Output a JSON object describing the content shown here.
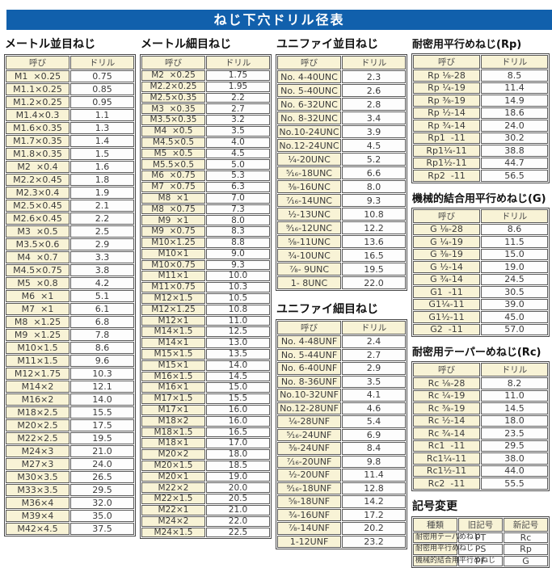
{
  "header": {
    "title": "ねじ下穴ドリル径表"
  },
  "colors": {
    "title_bar_blue": "#1160ac",
    "cell_cream": "#f8f3d6",
    "cell_white": "#fdfdfd",
    "border_gray": "#5a5a5a",
    "title_text": "#ffffff"
  },
  "tables": [
    {
      "id": "metric-coarse",
      "title": "メートル並目ねじ",
      "headers": [
        "呼び",
        "ドリル"
      ],
      "rows": [
        [
          "M1  ×0.25",
          "0.75"
        ],
        [
          "M1.1×0.25",
          "0.85"
        ],
        [
          "M1.2×0.25",
          "0.95"
        ],
        [
          "M1.4×0.3",
          "1.1"
        ],
        [
          "M1.6×0.35",
          "1.3"
        ],
        [
          "M1.7×0.35",
          "1.4"
        ],
        [
          "M1.8×0.35",
          "1.5"
        ],
        [
          "M2  ×0.4",
          "1.6"
        ],
        [
          "M2.2×0.45",
          "1.8"
        ],
        [
          "M2.3×0.4",
          "1.9"
        ],
        [
          "M2.5×0.45",
          "2.1"
        ],
        [
          "M2.6×0.45",
          "2.2"
        ],
        [
          "M3  ×0.5",
          "2.5"
        ],
        [
          "M3.5×0.6",
          "2.9"
        ],
        [
          "M4  ×0.7",
          "3.3"
        ],
        [
          "M4.5×0.75",
          "3.8"
        ],
        [
          "M5  ×0.8",
          "4.2"
        ],
        [
          "M6  ×1",
          "5.1"
        ],
        [
          "M7  ×1",
          "6.1"
        ],
        [
          "M8  ×1.25",
          "6.8"
        ],
        [
          "M9  ×1.25",
          "7.8"
        ],
        [
          "M10×1.5",
          "8.6"
        ],
        [
          "M11×1.5",
          "9.6"
        ],
        [
          "M12×1.75",
          "10.3"
        ],
        [
          "M14×2",
          "12.1"
        ],
        [
          "M16×2",
          "14.0"
        ],
        [
          "M18×2.5",
          "15.5"
        ],
        [
          "M20×2.5",
          "17.5"
        ],
        [
          "M22×2.5",
          "19.5"
        ],
        [
          "M24×3",
          "21.0"
        ],
        [
          "M27×3",
          "24.0"
        ],
        [
          "M30×3.5",
          "26.5"
        ],
        [
          "M33×3.5",
          "29.5"
        ],
        [
          "M36×4",
          "32.0"
        ],
        [
          "M39×4",
          "35.0"
        ],
        [
          "M42×4.5",
          "37.5"
        ]
      ]
    },
    {
      "id": "metric-fine",
      "title": "メートル細目ねじ",
      "headers": [
        "呼び",
        "ドリル"
      ],
      "rows": [
        [
          "M2  ×0.25",
          "1.75"
        ],
        [
          "M2.2×0.25",
          "1.95"
        ],
        [
          "M2.5×0.35",
          "2.2"
        ],
        [
          "M3  ×0.35",
          "2.7"
        ],
        [
          "M3.5×0.35",
          "3.2"
        ],
        [
          "M4  ×0.5",
          "3.5"
        ],
        [
          "M4.5×0.5",
          "4.0"
        ],
        [
          "M5  ×0.5",
          "4.5"
        ],
        [
          "M5.5×0.5",
          "5.0"
        ],
        [
          "M6  ×0.75",
          "5.3"
        ],
        [
          "M7  ×0.75",
          "6.3"
        ],
        [
          "M8  ×1",
          "7.0"
        ],
        [
          "M8  ×0.75",
          "7.3"
        ],
        [
          "M9  ×1",
          "8.0"
        ],
        [
          "M9  ×0.75",
          "8.3"
        ],
        [
          "M10×1.25",
          "8.8"
        ],
        [
          "M10×1",
          "9.0"
        ],
        [
          "M10×0.75",
          "9.3"
        ],
        [
          "M11×1",
          "10.0"
        ],
        [
          "M11×0.75",
          "10.3"
        ],
        [
          "M12×1.5",
          "10.5"
        ],
        [
          "M12×1.25",
          "10.8"
        ],
        [
          "M12×1",
          "11.0"
        ],
        [
          "M14×1.5",
          "12.5"
        ],
        [
          "M14×1",
          "13.0"
        ],
        [
          "M15×1.5",
          "13.5"
        ],
        [
          "M15×1",
          "14.0"
        ],
        [
          "M16×1.5",
          "14.5"
        ],
        [
          "M16×1",
          "15.0"
        ],
        [
          "M17×1.5",
          "15.5"
        ],
        [
          "M17×1",
          "16.0"
        ],
        [
          "M18×2",
          "16.0"
        ],
        [
          "M18×1.5",
          "16.5"
        ],
        [
          "M18×1",
          "17.0"
        ],
        [
          "M20×2",
          "18.0"
        ],
        [
          "M20×1.5",
          "18.5"
        ],
        [
          "M20×1",
          "19.0"
        ],
        [
          "M22×2",
          "20.0"
        ],
        [
          "M22×1.5",
          "20.5"
        ],
        [
          "M22×1",
          "21.0"
        ],
        [
          "M24×2",
          "22.0"
        ],
        [
          "M24×1.5",
          "22.5"
        ]
      ]
    },
    {
      "id": "unified-coarse",
      "title": "ユニファイ並目ねじ",
      "headers": [
        "呼び",
        "ドリル"
      ],
      "rows": [
        [
          "No. 4-40UNC",
          "2.3"
        ],
        [
          "No. 5-40UNC",
          "2.6"
        ],
        [
          "No. 6-32UNC",
          "2.8"
        ],
        [
          "No. 8-32UNC",
          "3.4"
        ],
        [
          "No.10-24UNC",
          "3.9"
        ],
        [
          "No.12-24UNC",
          "4.5"
        ],
        [
          "¹⁄₄-20UNC",
          "5.2"
        ],
        [
          "⁵⁄₁₆-18UNC",
          "6.6"
        ],
        [
          "³⁄₈-16UNC",
          "8.0"
        ],
        [
          "⁷⁄₁₆-14UNC",
          "9.3"
        ],
        [
          "¹⁄₂-13UNC",
          "10.8"
        ],
        [
          "⁹⁄₁₆-12UNC",
          "12.2"
        ],
        [
          "⁵⁄₈-11UNC",
          "13.6"
        ],
        [
          "³⁄₄-10UNC",
          "16.5"
        ],
        [
          "⁷⁄₈- 9UNC",
          "19.5"
        ],
        [
          "1- 8UNC",
          "22.0"
        ]
      ]
    },
    {
      "id": "unified-fine",
      "title": "ユニファイ細目ねじ",
      "headers": [
        "呼び",
        "ドリル"
      ],
      "rows": [
        [
          "No. 4-48UNF",
          "2.4"
        ],
        [
          "No. 5-44UNF",
          "2.7"
        ],
        [
          "No. 6-40UNF",
          "2.9"
        ],
        [
          "No. 8-36UNF",
          "3.5"
        ],
        [
          "No.10-32UNF",
          "4.1"
        ],
        [
          "No.12-28UNF",
          "4.6"
        ],
        [
          "¹⁄₄-28UNF",
          "5.4"
        ],
        [
          "⁵⁄₁₆-24UNF",
          "6.9"
        ],
        [
          "³⁄₈-24UNF",
          "8.4"
        ],
        [
          "⁷⁄₁₆-20UNF",
          "9.8"
        ],
        [
          "¹⁄₂-20UNF",
          "11.4"
        ],
        [
          "⁹⁄₁₆-18UNF",
          "12.8"
        ],
        [
          "⁵⁄₈-18UNF",
          "14.2"
        ],
        [
          "³⁄₄-16UNF",
          "17.2"
        ],
        [
          "⁷⁄₈-14UNF",
          "20.2"
        ],
        [
          "1-12UNF",
          "23.2"
        ]
      ]
    },
    {
      "id": "rp",
      "title": "耐密用平行めねじ(Rp)",
      "headers": [
        "呼び",
        "ドリル"
      ],
      "rows": [
        [
          "Rp ¹⁄₈-28",
          "8.5"
        ],
        [
          "Rp ¹⁄₄-19",
          "11.4"
        ],
        [
          "Rp ³⁄₈-19",
          "14.9"
        ],
        [
          "Rp ¹⁄₂-14",
          "18.6"
        ],
        [
          "Rp ³⁄₄-14",
          "24.0"
        ],
        [
          "Rp1  -11",
          "30.2"
        ],
        [
          "Rp1¹⁄₄-11",
          "38.8"
        ],
        [
          "Rp1¹⁄₂-11",
          "44.7"
        ],
        [
          "Rp2  -11",
          "56.5"
        ]
      ]
    },
    {
      "id": "g",
      "title": "機械的結合用平行めねじ(G)",
      "headers": [
        "呼び",
        "ドリル"
      ],
      "rows": [
        [
          "G ¹⁄₈-28",
          "8.6"
        ],
        [
          "G ¹⁄₄-19",
          "11.5"
        ],
        [
          "G ³⁄₈-19",
          "15.0"
        ],
        [
          "G ¹⁄₂-14",
          "19.0"
        ],
        [
          "G ³⁄₄-14",
          "24.5"
        ],
        [
          "G1  -11",
          "30.5"
        ],
        [
          "G1¹⁄₄-11",
          "39.0"
        ],
        [
          "G1¹⁄₂-11",
          "45.0"
        ],
        [
          "G2  -11",
          "57.0"
        ]
      ]
    },
    {
      "id": "rc",
      "title": "耐密用テーパーめねじ(Rc)",
      "headers": [
        "呼び",
        "ドリル"
      ],
      "rows": [
        [
          "Rc ¹⁄₈-28",
          "8.2"
        ],
        [
          "Rc ¹⁄₄-19",
          "11.0"
        ],
        [
          "Rc ³⁄₈-19",
          "14.5"
        ],
        [
          "Rc ¹⁄₂-14",
          "18.0"
        ],
        [
          "Rc ³⁄₄-14",
          "23.5"
        ],
        [
          "Rc1  -11",
          "29.5"
        ],
        [
          "Rc1¹⁄₄-11",
          "38.0"
        ],
        [
          "Rc1¹⁄₂-11",
          "44.0"
        ],
        [
          "Rc2  -11",
          "55.5"
        ]
      ]
    },
    {
      "id": "symbol-change",
      "title": "記号変更",
      "headers": [
        "種類",
        "旧記号",
        "新記号"
      ],
      "rows": [
        [
          "耐密用テーパめねじ",
          "PT",
          "Rc"
        ],
        [
          "耐密用平行めねじ",
          "PS",
          "Rp"
        ],
        [
          "機械的結合用平行めねじ",
          "PF",
          "G"
        ]
      ]
    }
  ]
}
